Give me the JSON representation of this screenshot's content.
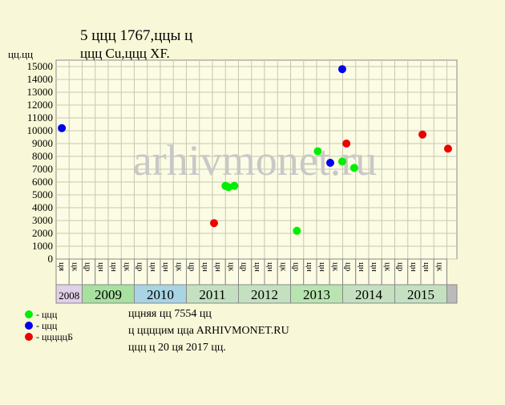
{
  "chart_data": {
    "type": "scatter",
    "title": "5 ццц 1767,ццы ц",
    "subtitle": "ццц Cu,ццц XF.",
    "y_label": "цц.цц",
    "watermark": "arhivmonet.ru",
    "xlim": [
      2008.5,
      2016.19
    ],
    "ylim": [
      0,
      15500
    ],
    "yticks": [
      0,
      1000,
      2000,
      3000,
      4000,
      5000,
      6000,
      7000,
      8000,
      9000,
      10000,
      11000,
      12000,
      13000,
      14000,
      15000
    ],
    "grid": true,
    "years": [
      {
        "label": "2008",
        "color": "#e0d0e8",
        "quarters": [
          "ця",
          "цк"
        ]
      },
      {
        "label": "2009",
        "color": "#a8e0a0",
        "quarters": [
          "цр",
          "цн",
          "цн",
          "цк"
        ]
      },
      {
        "label": "2010",
        "color": "#a8d4e4",
        "quarters": [
          "цр",
          "цн",
          "цн",
          "цк"
        ]
      },
      {
        "label": "2011",
        "color": "#c4e0c0",
        "quarters": [
          "цр",
          "цн",
          "цн",
          "цк"
        ]
      },
      {
        "label": "2012",
        "color": "#c4e0c0",
        "quarters": [
          "цр",
          "цн",
          "цн",
          "цк"
        ]
      },
      {
        "label": "2013",
        "color": "#b8e4b0",
        "quarters": [
          "цр",
          "цн",
          "цн",
          "цк"
        ]
      },
      {
        "label": "2014",
        "color": "#c4e0c0",
        "quarters": [
          "цр",
          "цн",
          "цн",
          "цк"
        ]
      },
      {
        "label": "2015",
        "color": "#c4e0c0",
        "quarters": [
          "цр",
          "цн",
          "цн",
          "цк"
        ]
      }
    ],
    "series": [
      {
        "name": "- ццц",
        "color": "#00ee00",
        "x": [
          2011.75,
          2011.81,
          2011.92,
          2013.12,
          2013.52,
          2013.99,
          2014.22
        ],
        "values": [
          5700,
          5600,
          5700,
          2200,
          8400,
          7600,
          7100
        ]
      },
      {
        "name": "- ццц",
        "color": "#0000ee",
        "x": [
          2008.61,
          2013.76,
          2013.99
        ],
        "values": [
          10200,
          7500,
          14800
        ]
      },
      {
        "name": "- цццццБ",
        "color": "#ee0000",
        "x": [
          2011.53,
          2014.07,
          2015.53,
          2016.02
        ],
        "values": [
          2800,
          9000,
          9700,
          8600
        ]
      }
    ],
    "notes": [
      "ццняя цц 7554 цц",
      "ц ццццим ццa ARHIVMONET.RU",
      "ццц ц 20 ця 2017 цц."
    ]
  }
}
